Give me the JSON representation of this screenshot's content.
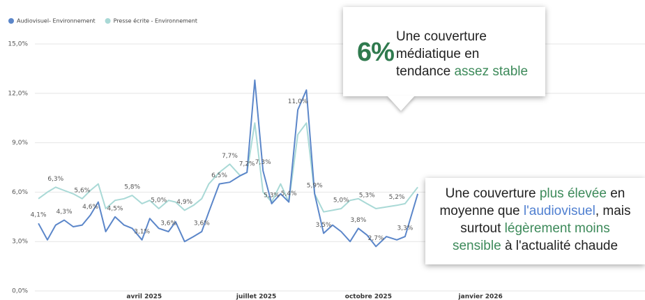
{
  "chart_data": {
    "type": "line",
    "legend": "top-left",
    "grid": true,
    "x": [
      1.17,
      1.41,
      1.63,
      1.86,
      2.1,
      2.34,
      2.56,
      2.77,
      2.97,
      3.22,
      3.46,
      3.68,
      3.94,
      4.15,
      4.39,
      4.65,
      4.84,
      5.08,
      5.32,
      5.54,
      5.73,
      6.01,
      6.29,
      6.57,
      6.75,
      6.96,
      7.18,
      7.41,
      7.65,
      7.87,
      8.11,
      8.34,
      8.56,
      8.8,
      9.04,
      9.27,
      9.51,
      9.73,
      9.96,
      10.2,
      10.48,
      10.76,
      10.98,
      11.32
    ],
    "xlim": [
      1,
      17.4
    ],
    "xticks": [
      {
        "value": 4,
        "label": "avril 2025"
      },
      {
        "value": 7,
        "label": "juillet 2025"
      },
      {
        "value": 10,
        "label": "octobre 2025"
      },
      {
        "value": 13,
        "label": "janvier 2026"
      }
    ],
    "ylim": [
      0,
      15
    ],
    "yticks": [
      {
        "value": 0,
        "label": "0,0%"
      },
      {
        "value": 3,
        "label": "3,0%"
      },
      {
        "value": 6,
        "label": "6,0%"
      },
      {
        "value": 9,
        "label": "9,0%"
      },
      {
        "value": 12,
        "label": "12,0%"
      },
      {
        "value": 15,
        "label": "15,0%"
      }
    ],
    "series": [
      {
        "name": "Audiovisuel- Environnement",
        "color": "#5b86c9",
        "values": [
          4.1,
          3.1,
          4.0,
          4.3,
          3.9,
          4.0,
          4.6,
          5.4,
          3.6,
          4.5,
          4.0,
          3.8,
          3.1,
          4.4,
          3.8,
          3.6,
          4.2,
          3.0,
          3.3,
          3.6,
          4.8,
          6.5,
          6.6,
          7.0,
          7.2,
          12.8,
          7.3,
          5.3,
          5.9,
          5.4,
          11.0,
          12.2,
          5.9,
          3.5,
          4.0,
          3.6,
          3.0,
          3.8,
          3.4,
          2.7,
          3.3,
          3.1,
          3.3,
          5.9
        ],
        "value_labels": [
          "4,1%",
          null,
          null,
          "4,3%",
          null,
          null,
          "4,6%",
          null,
          null,
          "4,5%",
          null,
          null,
          "3,1%",
          null,
          null,
          "3,6%",
          null,
          null,
          null,
          "3,6%",
          null,
          "6,5%",
          null,
          null,
          "7,2%",
          null,
          "7,3%",
          "5,3%",
          null,
          "5,4%",
          "11,0%",
          null,
          "5,9%",
          "3,5%",
          null,
          null,
          null,
          "3,8%",
          null,
          "2,7%",
          null,
          null,
          "3,3%",
          null
        ]
      },
      {
        "name": "Presse écrite - Environnement",
        "color": "#a9d9d6",
        "values": [
          5.6,
          6.0,
          6.3,
          6.1,
          5.9,
          5.6,
          6.1,
          6.5,
          5.0,
          5.5,
          5.6,
          5.8,
          5.3,
          5.5,
          5.0,
          5.5,
          5.4,
          4.9,
          5.2,
          5.6,
          6.5,
          7.2,
          7.7,
          7.0,
          7.2,
          10.2,
          6.0,
          5.4,
          6.5,
          5.4,
          9.5,
          10.2,
          5.9,
          4.8,
          4.9,
          5.0,
          5.5,
          5.6,
          5.3,
          5.0,
          5.1,
          5.2,
          5.3,
          6.3
        ],
        "value_labels": [
          null,
          null,
          "6,3%",
          null,
          null,
          "5,6%",
          null,
          null,
          null,
          null,
          null,
          "5,8%",
          null,
          null,
          "5,0%",
          null,
          null,
          "4,9%",
          null,
          null,
          null,
          null,
          "7,7%",
          null,
          null,
          null,
          null,
          null,
          null,
          null,
          null,
          null,
          null,
          null,
          null,
          "5,0%",
          null,
          null,
          "5,3%",
          null,
          null,
          "5,2%",
          null,
          null
        ]
      }
    ],
    "annotations": [
      {
        "big": "6%",
        "lines": [
          [
            "Une couverture"
          ],
          [
            "médiatique en"
          ],
          [
            "tendance ",
            "assez stable"
          ]
        ]
      },
      {
        "lines": [
          [
            "Une couverture ",
            "plus élevée",
            " en"
          ],
          [
            "moyenne que ",
            "l'audiovisuel",
            ", mais"
          ],
          [
            "surtout ",
            "légèrement moins"
          ],
          [
            "sensible",
            " à l'actualité chaude"
          ]
        ]
      }
    ]
  }
}
